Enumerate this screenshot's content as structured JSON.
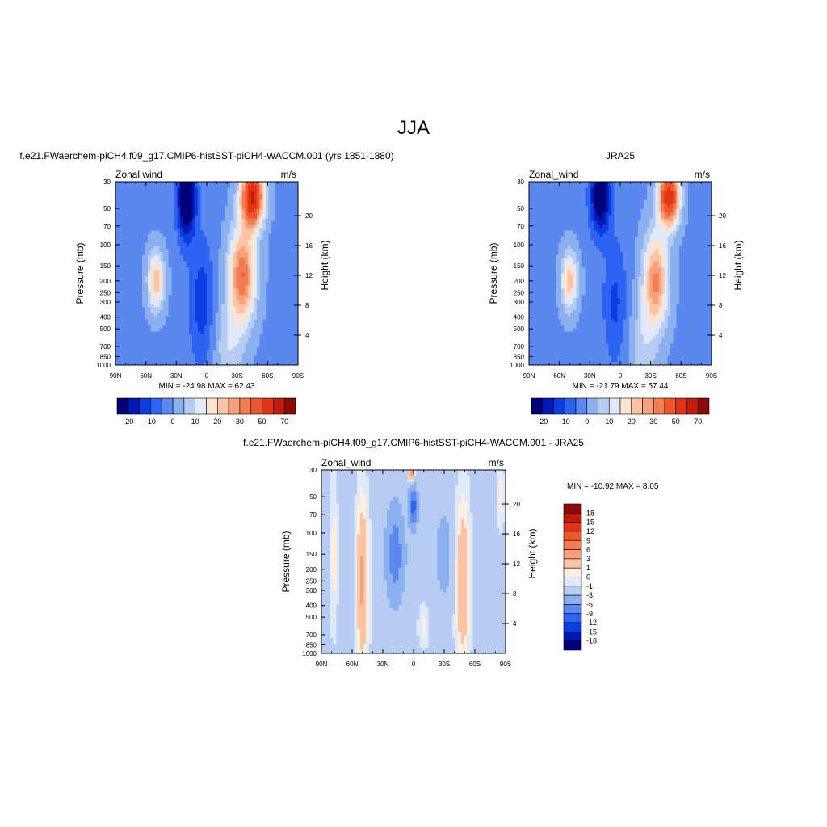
{
  "main_title": "JJA",
  "min_label": "MIN",
  "max_label": "MAX",
  "palette_abs": [
    "#00007a",
    "#0019b4",
    "#0b3de0",
    "#2b63f2",
    "#5a88ee",
    "#8ab0ee",
    "#b7ccf3",
    "#dfe9fa",
    "#fde4d0",
    "#fcc4a5",
    "#f7a07a",
    "#f37c52",
    "#ee562c",
    "#e23415",
    "#c21c0a",
    "#8c0c05"
  ],
  "palette_diff": [
    "#00007a",
    "#0019b4",
    "#0b3de0",
    "#2b63f2",
    "#5a88ee",
    "#8ab0ee",
    "#b7ccf3",
    "#dfe9fa",
    "#fdeede",
    "#fcc4a5",
    "#f7a07a",
    "#f37c52",
    "#ee562c",
    "#e23415",
    "#c21c0a",
    "#8c0c05"
  ],
  "chart_data": [
    {
      "id": "model",
      "type": "heatmap",
      "title": "f.e21.FWaerchem-piCH4.f09_g17.CMIP6-histSST-piCH4-WACCM.001 (yrs 1851-1880)",
      "subtitle_left": "Zonal wind",
      "subtitle_right": "m/s",
      "ylabel": "Pressure (mb)",
      "y2label": "Height (km)",
      "x_ticks": [
        "90N",
        "60N",
        "30N",
        "0",
        "30S",
        "60S",
        "90S"
      ],
      "y_ticks": [
        "30",
        "50",
        "70",
        "100",
        "150",
        "200",
        "250",
        "300",
        "400",
        "500",
        "700",
        "850",
        "1000"
      ],
      "y2_ticks": [
        "20",
        "16",
        "12",
        "8",
        "4"
      ],
      "min": "-24.98",
      "max": "62.43",
      "legend_orientation": "horizontal",
      "legend_labels": [
        "-20",
        "-10",
        "0",
        "10",
        "20",
        "30",
        "50",
        "70"
      ],
      "contour_levels": [
        -25,
        -20,
        -15,
        -10,
        -5,
        0,
        5,
        10,
        15,
        20,
        25,
        30,
        40,
        50,
        60,
        70
      ],
      "features": [
        {
          "lat": -45,
          "p": 40,
          "value": 58,
          "wlat": 11,
          "wp": 0.55
        },
        {
          "lat": -35,
          "p": 180,
          "value": 36,
          "wlat": 13,
          "wp": 0.9
        },
        {
          "lat": -22,
          "p": 700,
          "value": 10,
          "wlat": 14,
          "wp": 0.9
        },
        {
          "lat": 20,
          "p": 40,
          "value": -30,
          "wlat": 9,
          "wp": 0.8
        },
        {
          "lat": 5,
          "p": 300,
          "value": -12,
          "wlat": 12,
          "wp": 1.2
        },
        {
          "lat": 50,
          "p": 200,
          "value": 25,
          "wlat": 8,
          "wp": 0.55
        }
      ],
      "base_value": -6
    },
    {
      "id": "obs",
      "type": "heatmap",
      "title": "JRA25",
      "subtitle_left": "Zonal_wind",
      "subtitle_right": "m/s",
      "ylabel": "Pressure (mb)",
      "y2label": "Height (km)",
      "x_ticks": [
        "90N",
        "60N",
        "30N",
        "0",
        "30S",
        "60S",
        "90S"
      ],
      "y_ticks": [
        "30",
        "50",
        "70",
        "100",
        "150",
        "200",
        "250",
        "300",
        "400",
        "500",
        "700",
        "850",
        "1000"
      ],
      "y2_ticks": [
        "20",
        "16",
        "12",
        "8",
        "4"
      ],
      "min": "-21.79",
      "max": "57.44",
      "legend_orientation": "horizontal",
      "legend_labels": [
        "-20",
        "-10",
        "0",
        "10",
        "20",
        "30",
        "50",
        "70"
      ],
      "contour_levels": [
        -25,
        -20,
        -15,
        -10,
        -5,
        0,
        5,
        10,
        15,
        20,
        25,
        30,
        40,
        50,
        60,
        70
      ],
      "features": [
        {
          "lat": -48,
          "p": 40,
          "value": 52,
          "wlat": 10,
          "wp": 0.55
        },
        {
          "lat": -35,
          "p": 200,
          "value": 32,
          "wlat": 12,
          "wp": 0.9
        },
        {
          "lat": -22,
          "p": 700,
          "value": 9,
          "wlat": 13,
          "wp": 0.9
        },
        {
          "lat": 20,
          "p": 40,
          "value": -26,
          "wlat": 10,
          "wp": 0.7
        },
        {
          "lat": 5,
          "p": 300,
          "value": -10,
          "wlat": 12,
          "wp": 1.2
        },
        {
          "lat": 50,
          "p": 200,
          "value": 24,
          "wlat": 8,
          "wp": 0.55
        }
      ],
      "base_value": -6
    },
    {
      "id": "diff",
      "type": "heatmap",
      "title": "f.e21.FWaerchem-piCH4.f09_g17.CMIP6-histSST-piCH4-WACCM.001 - JRA25",
      "subtitle_left": "Zonal_wind",
      "subtitle_right": "m/s",
      "ylabel": "Pressure (mb)",
      "y2label": "Height (km)",
      "x_ticks": [
        "90N",
        "60N",
        "30N",
        "0",
        "30S",
        "60S",
        "90S"
      ],
      "y_ticks": [
        "30",
        "50",
        "70",
        "100",
        "150",
        "200",
        "250",
        "300",
        "400",
        "500",
        "700",
        "850",
        "1000"
      ],
      "y2_ticks": [
        "20",
        "16",
        "12",
        "8",
        "4"
      ],
      "min": "-10.92",
      "max": "8.05",
      "legend_orientation": "vertical",
      "legend_labels": [
        "18",
        "15",
        "12",
        "9",
        "6",
        "3",
        "1",
        "0",
        "-1",
        "-3",
        "-6",
        "-9",
        "-12",
        "-15",
        "-18"
      ],
      "contour_levels": [
        -18,
        -15,
        -12,
        -9,
        -6,
        -3,
        -1,
        0,
        1,
        3,
        6,
        9,
        12,
        15,
        18
      ],
      "features": [
        {
          "lat": 50,
          "p": 250,
          "value": 5,
          "wlat": 6,
          "wp": 1.6
        },
        {
          "lat": -48,
          "p": 250,
          "value": 4.5,
          "wlat": 7,
          "wp": 1.6
        },
        {
          "lat": 18,
          "p": 150,
          "value": -6.5,
          "wlat": 9,
          "wp": 0.9
        },
        {
          "lat": 0,
          "p": 60,
          "value": -9,
          "wlat": 4,
          "wp": 0.4
        },
        {
          "lat": 2,
          "p": 32,
          "value": 7.5,
          "wlat": 3,
          "wp": 0.15
        },
        {
          "lat": -30,
          "p": 150,
          "value": -2.5,
          "wlat": 10,
          "wp": 1.0
        },
        {
          "lat": 78,
          "p": 150,
          "value": 2,
          "wlat": 4,
          "wp": 1.5
        },
        {
          "lat": -10,
          "p": 600,
          "value": 2,
          "wlat": 5,
          "wp": 0.4
        },
        {
          "lat": -85,
          "p": 50,
          "value": 2,
          "wlat": 4,
          "wp": 0.6
        }
      ],
      "base_value": -1.5
    }
  ]
}
